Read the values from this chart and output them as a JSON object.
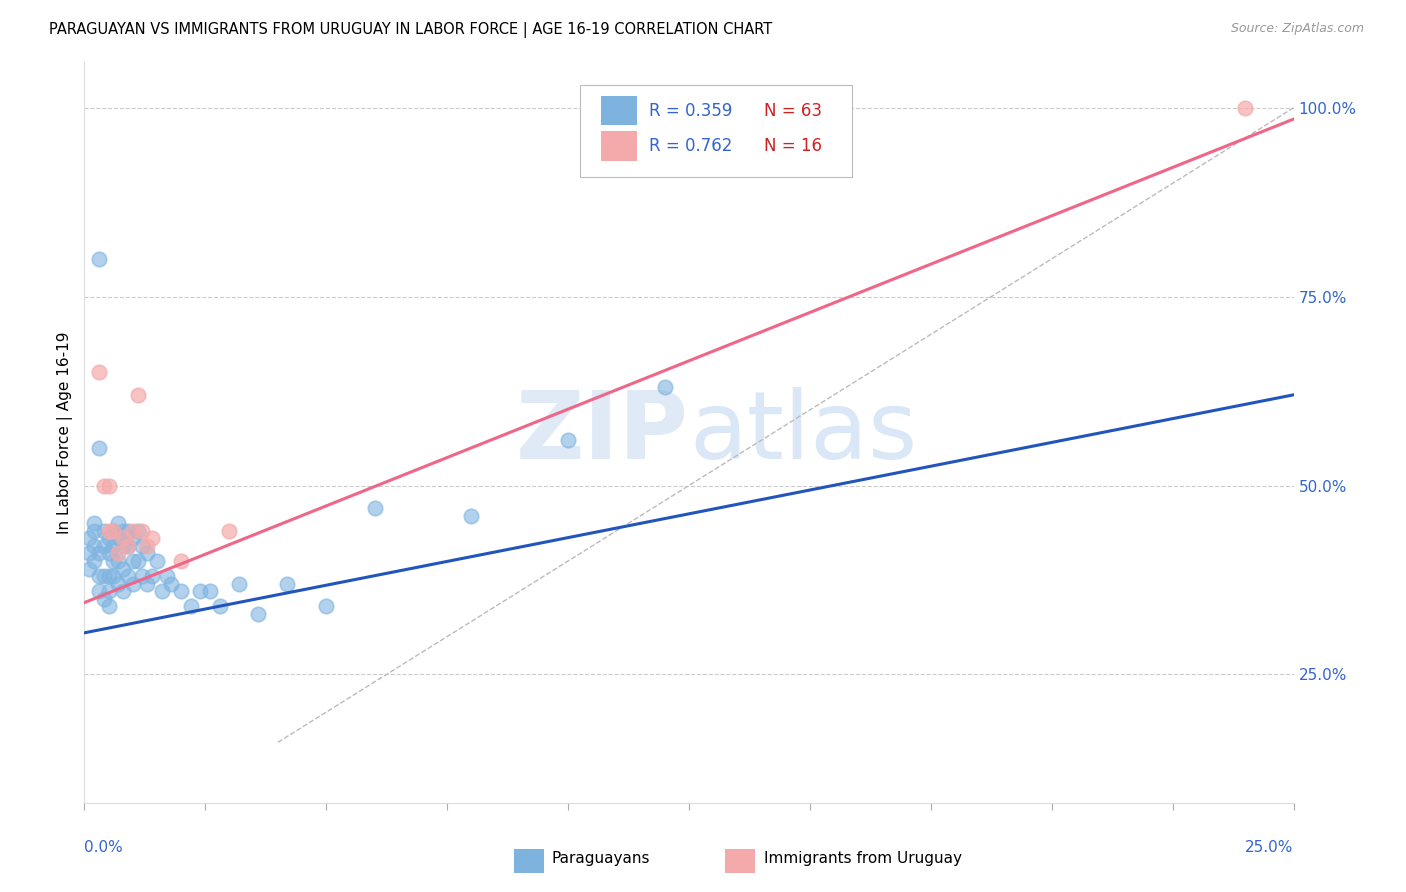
{
  "title": "PARAGUAYAN VS IMMIGRANTS FROM URUGUAY IN LABOR FORCE | AGE 16-19 CORRELATION CHART",
  "source": "Source: ZipAtlas.com",
  "ylabel_label": "In Labor Force | Age 16-19",
  "ytick_values": [
    0.25,
    0.5,
    0.75,
    1.0
  ],
  "ytick_labels": [
    "25.0%",
    "50.0%",
    "75.0%",
    "100.0%"
  ],
  "xmin": 0.0,
  "xmax": 0.25,
  "ymin": 0.08,
  "ymax": 1.06,
  "blue_color": "#7EB3E0",
  "pink_color": "#F4AAAA",
  "blue_line_color": "#2255BB",
  "pink_line_color": "#EE6688",
  "tick_color": "#3366CC",
  "blue_line_x": [
    0.0,
    0.25
  ],
  "blue_line_y": [
    0.305,
    0.62
  ],
  "pink_line_x": [
    0.0,
    0.25
  ],
  "pink_line_y": [
    0.345,
    0.985
  ],
  "diag_line_x": [
    0.04,
    0.25
  ],
  "diag_line_y": [
    0.16,
    1.0
  ],
  "blue_dots_x": [
    0.001,
    0.001,
    0.001,
    0.002,
    0.002,
    0.002,
    0.002,
    0.003,
    0.003,
    0.003,
    0.003,
    0.003,
    0.004,
    0.004,
    0.004,
    0.004,
    0.005,
    0.005,
    0.005,
    0.005,
    0.005,
    0.006,
    0.006,
    0.006,
    0.006,
    0.007,
    0.007,
    0.007,
    0.007,
    0.008,
    0.008,
    0.008,
    0.008,
    0.009,
    0.009,
    0.009,
    0.01,
    0.01,
    0.01,
    0.011,
    0.011,
    0.012,
    0.012,
    0.013,
    0.013,
    0.014,
    0.015,
    0.016,
    0.017,
    0.018,
    0.02,
    0.022,
    0.024,
    0.026,
    0.028,
    0.032,
    0.036,
    0.042,
    0.05,
    0.06,
    0.08,
    0.1,
    0.12
  ],
  "blue_dots_y": [
    0.43,
    0.41,
    0.39,
    0.45,
    0.44,
    0.42,
    0.4,
    0.55,
    0.8,
    0.41,
    0.38,
    0.36,
    0.44,
    0.42,
    0.38,
    0.35,
    0.43,
    0.41,
    0.38,
    0.36,
    0.34,
    0.44,
    0.42,
    0.4,
    0.38,
    0.45,
    0.43,
    0.4,
    0.37,
    0.44,
    0.42,
    0.39,
    0.36,
    0.44,
    0.42,
    0.38,
    0.43,
    0.4,
    0.37,
    0.44,
    0.4,
    0.42,
    0.38,
    0.41,
    0.37,
    0.38,
    0.4,
    0.36,
    0.38,
    0.37,
    0.36,
    0.34,
    0.36,
    0.36,
    0.34,
    0.37,
    0.33,
    0.37,
    0.34,
    0.47,
    0.46,
    0.56,
    0.63
  ],
  "pink_dots_x": [
    0.003,
    0.004,
    0.005,
    0.005,
    0.006,
    0.007,
    0.008,
    0.009,
    0.01,
    0.011,
    0.012,
    0.013,
    0.014,
    0.02,
    0.03,
    0.24
  ],
  "pink_dots_y": [
    0.65,
    0.5,
    0.5,
    0.44,
    0.44,
    0.41,
    0.43,
    0.42,
    0.44,
    0.62,
    0.44,
    0.42,
    0.43,
    0.4,
    0.44,
    1.0
  ]
}
